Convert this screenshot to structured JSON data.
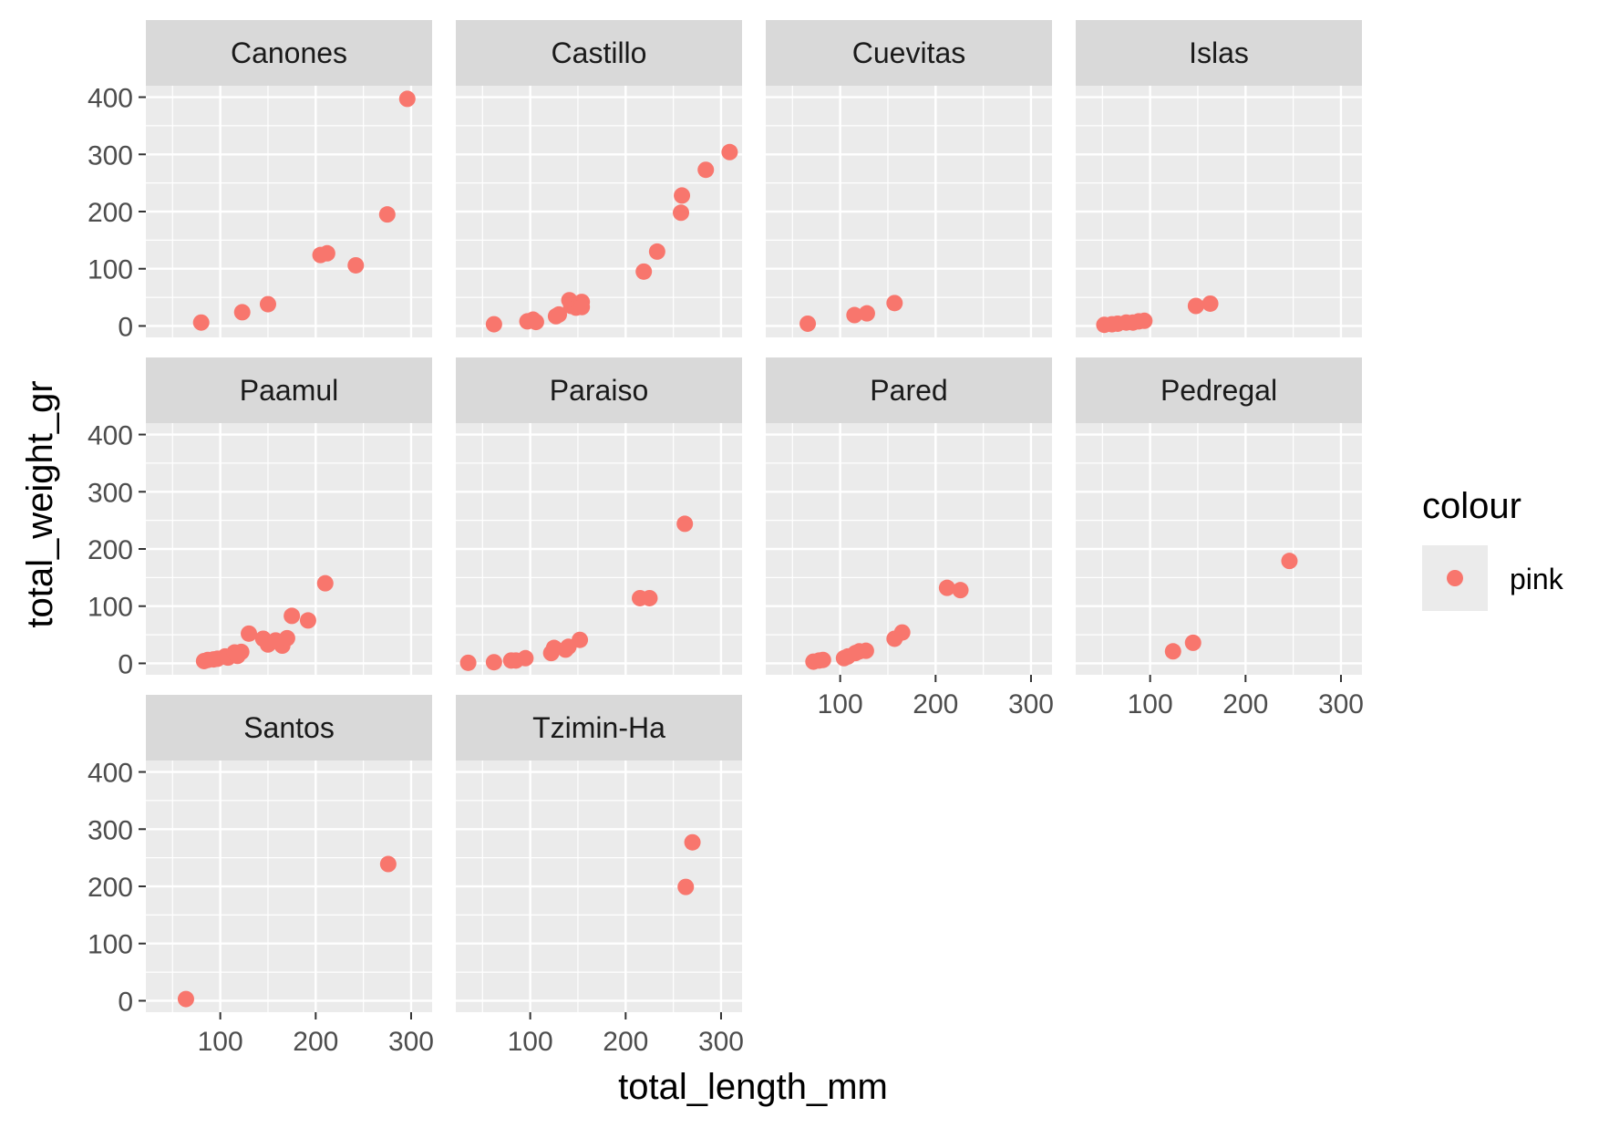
{
  "chart_data": {
    "type": "scatter",
    "facet_by": "site",
    "xlabel": "total_length_mm",
    "ylabel": "total_weight_gr",
    "xlim": [
      22,
      322
    ],
    "ylim": [
      -20,
      420
    ],
    "x_ticks": [
      100,
      200,
      300
    ],
    "y_ticks": [
      0,
      100,
      200,
      300,
      400
    ],
    "legend": {
      "title": "colour",
      "entries": [
        {
          "label": "pink",
          "color": "#F8766D"
        }
      ]
    },
    "colors": {
      "point": "#F8766D",
      "panel_bg": "#EBEBEB",
      "strip_bg": "#D9D9D9",
      "grid": "#FFFFFF"
    },
    "panels": [
      {
        "site": "Canones",
        "points": [
          [
            80,
            6
          ],
          [
            123,
            24
          ],
          [
            150,
            38
          ],
          [
            205,
            124
          ],
          [
            212,
            127
          ],
          [
            242,
            106
          ],
          [
            275,
            195
          ],
          [
            296,
            397
          ]
        ]
      },
      {
        "site": "Castillo",
        "points": [
          [
            62,
            3
          ],
          [
            97,
            8
          ],
          [
            103,
            11
          ],
          [
            106,
            7
          ],
          [
            127,
            17
          ],
          [
            130,
            20
          ],
          [
            141,
            45
          ],
          [
            143,
            35
          ],
          [
            148,
            32
          ],
          [
            151,
            38
          ],
          [
            154,
            42
          ],
          [
            154,
            33
          ],
          [
            219,
            95
          ],
          [
            233,
            130
          ],
          [
            258,
            198
          ],
          [
            259,
            228
          ],
          [
            284,
            273
          ],
          [
            309,
            304
          ]
        ]
      },
      {
        "site": "Cuevitas",
        "points": [
          [
            66,
            4
          ],
          [
            115,
            19
          ],
          [
            128,
            22
          ],
          [
            157,
            40
          ]
        ]
      },
      {
        "site": "Islas",
        "points": [
          [
            52,
            2
          ],
          [
            60,
            3
          ],
          [
            66,
            4
          ],
          [
            75,
            6
          ],
          [
            82,
            6
          ],
          [
            88,
            8
          ],
          [
            94,
            9
          ],
          [
            148,
            35
          ],
          [
            163,
            39
          ]
        ]
      },
      {
        "site": "Paamul",
        "points": [
          [
            83,
            4
          ],
          [
            87,
            6
          ],
          [
            93,
            7
          ],
          [
            97,
            8
          ],
          [
            105,
            12
          ],
          [
            108,
            10
          ],
          [
            115,
            19
          ],
          [
            118,
            13
          ],
          [
            122,
            20
          ],
          [
            130,
            52
          ],
          [
            145,
            43
          ],
          [
            150,
            33
          ],
          [
            158,
            40
          ],
          [
            165,
            31
          ],
          [
            170,
            44
          ],
          [
            175,
            83
          ],
          [
            192,
            75
          ],
          [
            210,
            140
          ]
        ]
      },
      {
        "site": "Paraiso",
        "points": [
          [
            35,
            1
          ],
          [
            62,
            2
          ],
          [
            80,
            5
          ],
          [
            85,
            5
          ],
          [
            95,
            9
          ],
          [
            122,
            18
          ],
          [
            125,
            27
          ],
          [
            137,
            24
          ],
          [
            140,
            29
          ],
          [
            152,
            41
          ],
          [
            215,
            114
          ],
          [
            225,
            114
          ],
          [
            262,
            244
          ]
        ]
      },
      {
        "site": "Pared",
        "points": [
          [
            72,
            3
          ],
          [
            78,
            5
          ],
          [
            82,
            6
          ],
          [
            104,
            9
          ],
          [
            108,
            12
          ],
          [
            116,
            18
          ],
          [
            120,
            21
          ],
          [
            127,
            22
          ],
          [
            157,
            43
          ],
          [
            165,
            54
          ],
          [
            212,
            132
          ],
          [
            226,
            128
          ]
        ]
      },
      {
        "site": "Pedregal",
        "points": [
          [
            124,
            21
          ],
          [
            145,
            36
          ],
          [
            246,
            179
          ]
        ]
      },
      {
        "site": "Santos",
        "points": [
          [
            64,
            3
          ],
          [
            276,
            239
          ]
        ]
      },
      {
        "site": "Tzimin-Ha",
        "points": [
          [
            263,
            199
          ],
          [
            270,
            277
          ]
        ]
      }
    ]
  }
}
